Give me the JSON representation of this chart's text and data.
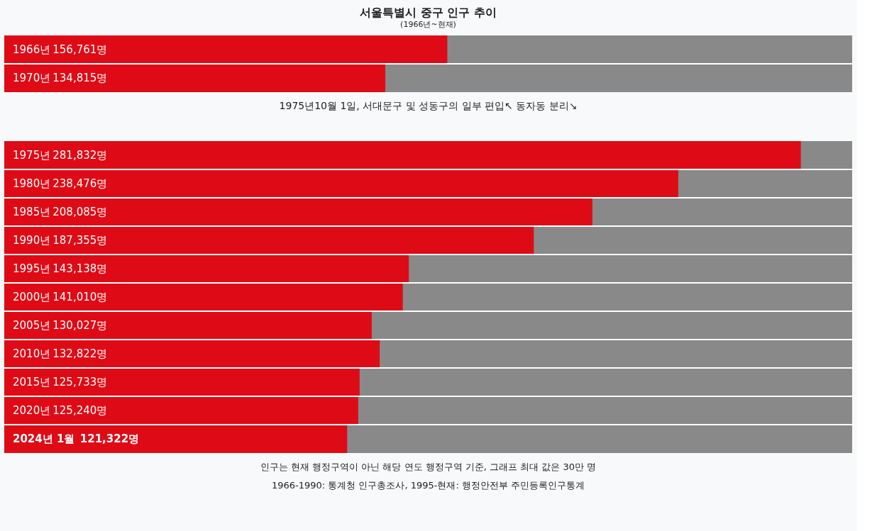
{
  "chart_data": [
    {
      "type": "bar",
      "orientation": "horizontal",
      "title": "서울특별시 중구 인구 추이",
      "subtitle": "(1966년~현재)",
      "categories": [
        "1966년",
        "1970년"
      ],
      "values": [
        156761,
        134815
      ],
      "value_labels": [
        "156,761명",
        "134,815명"
      ],
      "color": "#de0b16",
      "xlim": [
        0,
        300000
      ],
      "annotations": [
        "1975년10월 1일, 서대문구 및 성동구의 일부 편입↖ 동자동 분리↘"
      ]
    },
    {
      "type": "bar",
      "orientation": "horizontal",
      "categories": [
        "1975년",
        "1980년",
        "1985년",
        "1990년",
        "1995년",
        "2000년",
        "2005년",
        "2010년",
        "2015년",
        "2020년",
        "2024년 1월"
      ],
      "values": [
        281832,
        238476,
        208085,
        187355,
        143138,
        141010,
        130027,
        132822,
        125733,
        125240,
        121322
      ],
      "value_labels": [
        "281,832명",
        "238,476명",
        "208,085명",
        "187,355명",
        "143,138명",
        "141,010명",
        "130,027명",
        "132,822명",
        "125,733명",
        "125,240명",
        "121,322명"
      ],
      "color": "#de0b16",
      "xlim": [
        0,
        300000
      ],
      "annotations": [
        "인구는 현재 행정구역이 아닌 해당 연도 행정구역 기준, 그래프 최대 값은 30만 명",
        "1966-1990: 통계청 인구총조사, 1995-현재: 행정안전부 주민등록인구통계"
      ]
    }
  ]
}
